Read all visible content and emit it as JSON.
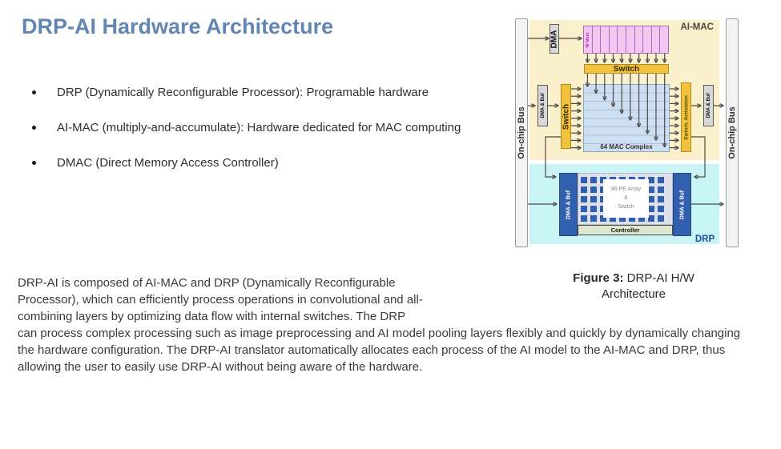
{
  "page": {
    "title": "DRP-AI Hardware Architecture",
    "bullets": [
      "DRP (Dynamically Reconfigurable Processor): Programable hardware",
      "AI-MAC (multiply-and-accumulate): Hardware dedicated for MAC computing",
      "DMAC (Direct Memory Access Controller)"
    ],
    "paragraph": "DRP-AI is composed of AI-MAC and DRP (Dynamically Reconfigurable Processor), which can efficiently process operations in convolutional and all-combining layers by optimizing data flow with internal switches. The DRP can process complex processing such as image preprocessing and AI model pooling layers flexibly and quickly by dynamically changing the hardware configuration. The DRP-AI translator automatically allocates each process of the AI model to the AI-MAC and DRP, thus allowing the user to easily use DRP-AI without being aware of the hardware."
  },
  "figure": {
    "caption_label": "Figure 3:",
    "caption_text": " DRP-AI H/W Architecture",
    "labels": {
      "on_chip_bus": "On-chip Bus",
      "ai_mac": "AI-MAC",
      "drp": "DRP",
      "dma": "DMA",
      "w_mem": "W Mem",
      "switch_top": "Switch",
      "switch_left": "Switch",
      "switch_activation": "Switch, Activation",
      "dma_buf": "DMA & Buf",
      "mac_complex": "64 MAC Complex",
      "controller": "Controller"
    },
    "pe_lines": [
      "96 PE Array",
      "&",
      "Switch"
    ],
    "colors": {
      "title_blue": "#6286b2",
      "ai_mac_bg": "#faf0cc",
      "drp_bg": "#c9f4f6",
      "weight_mem_pink": "#f4c7f1",
      "switch_yellow": "#f0c23e",
      "mac_complex_blue": "#cfdff2",
      "dma_buf_dark_blue": "#3060ae",
      "controller_green": "#dce8cd",
      "bus_gray": "#f3f3f3",
      "connector_gray": "#4a4a4a",
      "drp_label_blue": "#1f4e9c"
    }
  }
}
